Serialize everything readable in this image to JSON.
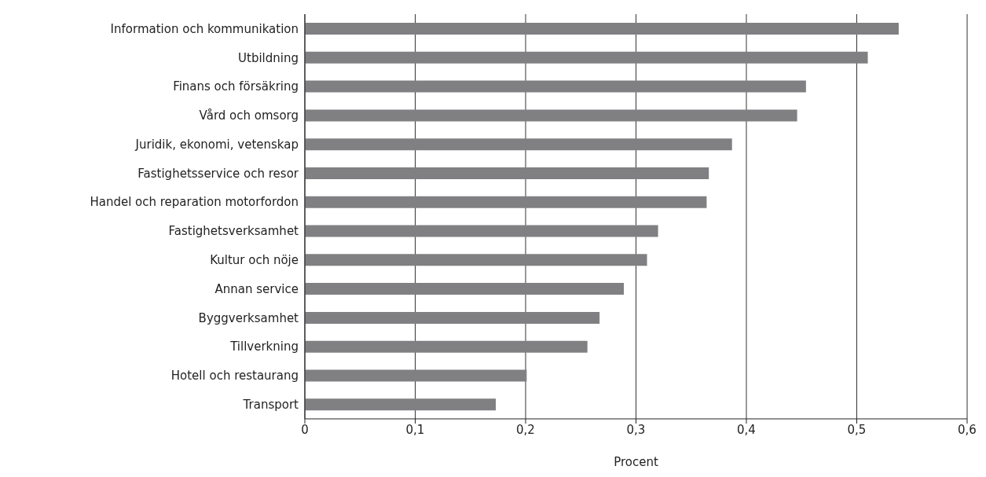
{
  "chart_data": {
    "type": "bar",
    "orientation": "horizontal",
    "xlabel": "Procent",
    "categories": [
      "Information och kommunikation",
      "Utbildning",
      "Finans och försäkring",
      "Vård och omsorg",
      "Juridik, ekonomi, vetenskap",
      "Fastighetsservice och resor",
      "Handel och reparation motorfordon",
      "Fastighetsverksamhet",
      "Kultur och nöje",
      "Annan service",
      "Byggverksamhet",
      "Tillverkning",
      "Hotell och restaurang",
      "Transport"
    ],
    "values": [
      0.538,
      0.51,
      0.454,
      0.446,
      0.387,
      0.366,
      0.364,
      0.32,
      0.31,
      0.289,
      0.267,
      0.256,
      0.201,
      0.173
    ],
    "color": "#808083",
    "xlim": [
      0,
      0.6
    ],
    "xticks": [
      {
        "value": 0,
        "label": "0"
      },
      {
        "value": 0.1,
        "label": "0,1"
      },
      {
        "value": 0.2,
        "label": "0,2"
      },
      {
        "value": 0.3,
        "label": "0,3"
      },
      {
        "value": 0.4,
        "label": "0,4"
      },
      {
        "value": 0.5,
        "label": "0,5"
      },
      {
        "value": 0.6,
        "label": "0,6"
      }
    ],
    "grid": "x",
    "legend": false
  }
}
